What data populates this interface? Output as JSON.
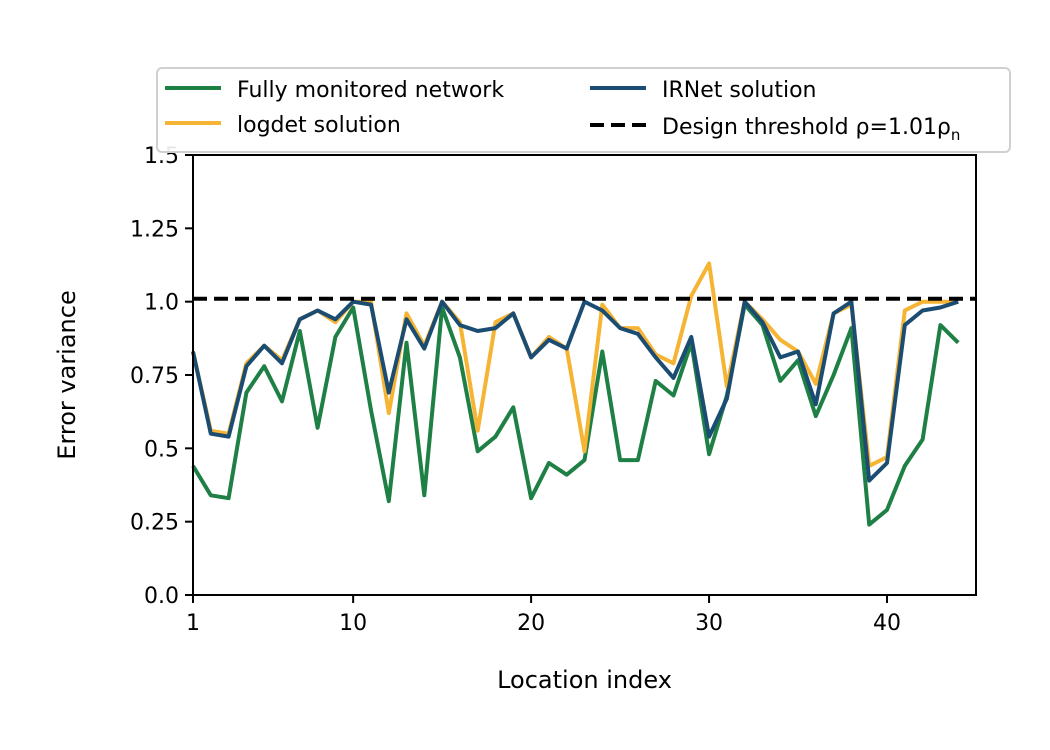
{
  "chart_data": {
    "type": "line",
    "xlabel": "Location index",
    "ylabel": "Error variance",
    "xlim": [
      1,
      45
    ],
    "ylim": [
      0,
      1.5
    ],
    "xticks": [
      {
        "value": 1,
        "label": "1"
      },
      {
        "value": 10,
        "label": "10"
      },
      {
        "value": 20,
        "label": "20"
      },
      {
        "value": 30,
        "label": "30"
      },
      {
        "value": 40,
        "label": "40"
      }
    ],
    "yticks": [
      {
        "value": 0,
        "label": "0.0"
      },
      {
        "value": 0.25,
        "label": "0.25"
      },
      {
        "value": 0.5,
        "label": "0.5"
      },
      {
        "value": 0.75,
        "label": "0.75"
      },
      {
        "value": 1.0,
        "label": "1.0"
      },
      {
        "value": 1.25,
        "label": "1.25"
      },
      {
        "value": 1.5,
        "label": "1.5"
      }
    ],
    "grid": false,
    "legend_position": "top",
    "x": [
      1,
      2,
      3,
      4,
      5,
      6,
      7,
      8,
      9,
      10,
      11,
      12,
      13,
      14,
      15,
      16,
      17,
      18,
      19,
      20,
      21,
      22,
      23,
      24,
      25,
      26,
      27,
      28,
      29,
      30,
      31,
      32,
      33,
      34,
      35,
      36,
      37,
      38,
      39,
      40,
      41,
      42,
      43,
      44
    ],
    "series": [
      {
        "name": "Fully monitored network",
        "color": "#1e8044",
        "dash": "solid",
        "values": [
          0.44,
          0.34,
          0.33,
          0.69,
          0.78,
          0.66,
          0.9,
          0.57,
          0.88,
          0.98,
          0.63,
          0.32,
          0.86,
          0.34,
          0.98,
          0.81,
          0.49,
          0.54,
          0.64,
          0.33,
          0.45,
          0.41,
          0.46,
          0.83,
          0.46,
          0.46,
          0.73,
          0.68,
          0.86,
          0.48,
          0.68,
          0.99,
          0.92,
          0.73,
          0.8,
          0.61,
          0.75,
          0.91,
          0.24,
          0.29,
          0.44,
          0.53,
          0.92,
          0.86
        ]
      },
      {
        "name": "logdet solution",
        "color": "#f6b434",
        "dash": "solid",
        "values": [
          0.83,
          0.56,
          0.55,
          0.79,
          0.85,
          0.8,
          0.94,
          0.97,
          0.93,
          1.0,
          1.0,
          0.62,
          0.96,
          0.85,
          1.0,
          0.93,
          0.56,
          0.93,
          0.96,
          0.81,
          0.88,
          0.84,
          0.49,
          0.99,
          0.91,
          0.91,
          0.82,
          0.79,
          1.02,
          1.13,
          0.71,
          1.0,
          0.94,
          0.87,
          0.83,
          0.72,
          0.96,
          0.99,
          0.44,
          0.47,
          0.97,
          1.0,
          1.0,
          1.0
        ]
      },
      {
        "name": "IRNet solution",
        "color": "#1b4c72",
        "dash": "solid",
        "values": [
          0.83,
          0.55,
          0.54,
          0.78,
          0.85,
          0.79,
          0.94,
          0.97,
          0.94,
          1.0,
          0.99,
          0.69,
          0.94,
          0.84,
          1.0,
          0.92,
          0.9,
          0.91,
          0.96,
          0.81,
          0.87,
          0.84,
          1.0,
          0.97,
          0.91,
          0.89,
          0.81,
          0.74,
          0.88,
          0.54,
          0.67,
          1.0,
          0.93,
          0.81,
          0.83,
          0.65,
          0.96,
          1.0,
          0.39,
          0.45,
          0.92,
          0.97,
          0.98,
          1.0
        ]
      },
      {
        "name": "Design threshold ρ=1.01ρ",
        "name_subscript": "n",
        "color": "#000000",
        "dash": "dashed",
        "values": [
          1.01,
          1.01,
          1.01,
          1.01,
          1.01,
          1.01,
          1.01,
          1.01,
          1.01,
          1.01,
          1.01,
          1.01,
          1.01,
          1.01,
          1.01,
          1.01,
          1.01,
          1.01,
          1.01,
          1.01,
          1.01,
          1.01,
          1.01,
          1.01,
          1.01,
          1.01,
          1.01,
          1.01,
          1.01,
          1.01,
          1.01,
          1.01,
          1.01,
          1.01,
          1.01,
          1.01,
          1.01,
          1.01,
          1.01,
          1.01,
          1.01,
          1.01,
          1.01,
          1.01
        ]
      }
    ]
  }
}
